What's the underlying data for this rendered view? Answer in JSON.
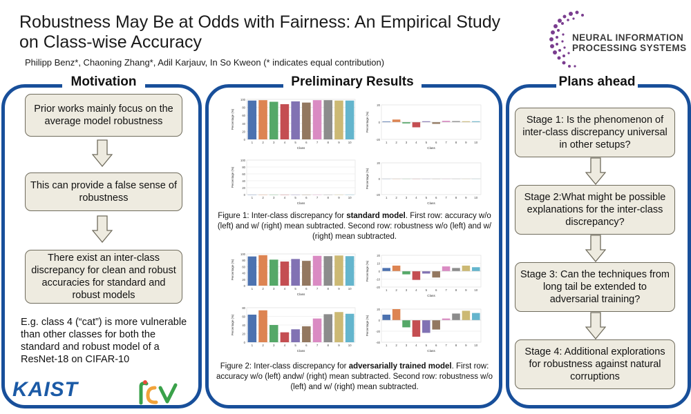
{
  "header": {
    "title": "Robustness May Be at Odds with Fairness: An Empirical Study on Class-wise Accuracy",
    "authors": "Philipp Benz*, Chaoning Zhang*, Adil Karjauv, In So Kweon (* indicates equal contribution)",
    "conference_logo_text_line1": "NEURAL INFORMATION",
    "conference_logo_text_line2": "PROCESSING SYSTEMS"
  },
  "motivation": {
    "heading": "Motivation",
    "boxes": [
      "Prior works mainly focus on the average model robustness",
      "This can provide a false sense of robustness",
      "There exist an inter-class discrepancy for clean and robust accuracies for standard and robust models"
    ],
    "note": "E.g. class 4 (“cat”) is more vulnerable than other classes for both the standard and robust model of a ResNet-18 on CIFAR-10"
  },
  "results": {
    "heading": "Preliminary Results",
    "fig1_caption_pre": "Figure 1: Inter-class discrepancy for ",
    "fig1_caption_bold": "standard model",
    "fig1_caption_post": ". First row: accuracy w/o (left) and w/ (right) mean subtracted. Second row: robustness w/o (left) and w/ (right) mean subtracted.",
    "fig2_caption_pre": "Figure 2: Inter-class discrepancy for ",
    "fig2_caption_bold": "adversarially trained model",
    "fig2_caption_post": ". First row: accuracy w/o (left) andw/ (right) mean subtracted. Second row: robustness w/o (left) and w/ (right) mean subtracted."
  },
  "plans": {
    "heading": "Plans ahead",
    "stages": [
      "Stage 1: Is the phenomenon of inter-class discrepancy universal in other setups?",
      "Stage 2:What might be possible explanations for the inter-class discrepancy?",
      "Stage 3: Can the techniques from long tail be extended to adversarial training?",
      "Stage 4: Additional explorations for robustness against natural corruptions"
    ]
  },
  "footer": {
    "kaist": "KAIST"
  },
  "colors": {
    "frame": "#184f9a",
    "box_fill": "#eeebe0",
    "bars": [
      "#4c72b0",
      "#dd8452",
      "#55a868",
      "#c44e52",
      "#8172b3",
      "#937860",
      "#da8bc3",
      "#8c8c8c",
      "#ccb974",
      "#64b5cd"
    ]
  },
  "chart_data": [
    {
      "type": "bar",
      "id": "fig1-accuracy",
      "categories": [
        "1",
        "2",
        "3",
        "4",
        "5",
        "6",
        "7",
        "8",
        "9",
        "10"
      ],
      "values": [
        97,
        98,
        94,
        88,
        95,
        92,
        98,
        98,
        97,
        97
      ],
      "xlabel": "Class",
      "ylabel": "Percentage (%)",
      "ylim": [
        0,
        100
      ],
      "yticks": [
        0,
        20,
        40,
        60,
        80,
        100
      ]
    },
    {
      "type": "bar",
      "id": "fig1-accuracy-mean-subtracted",
      "categories": [
        "1",
        "2",
        "3",
        "4",
        "5",
        "6",
        "7",
        "8",
        "9",
        "10"
      ],
      "values": [
        0.8,
        3,
        -1.5,
        -6,
        1,
        -2,
        1.5,
        1.2,
        1,
        1
      ],
      "xlabel": "Class",
      "ylabel": "Percentage (%)",
      "ylim": [
        -20,
        20
      ],
      "yticks": [
        -20,
        0,
        20
      ]
    },
    {
      "type": "bar",
      "id": "fig1-robustness",
      "categories": [
        "1",
        "2",
        "3",
        "4",
        "5",
        "6",
        "7",
        "8",
        "9",
        "10"
      ],
      "values": [
        0,
        0,
        0,
        0,
        0,
        0,
        0,
        0,
        0,
        0
      ],
      "xlabel": "Class",
      "ylabel": "Percentage (%)",
      "ylim": [
        0,
        100
      ],
      "yticks": [
        0,
        20,
        40,
        60,
        80,
        100
      ]
    },
    {
      "type": "bar",
      "id": "fig1-robustness-mean-subtracted",
      "categories": [
        "1",
        "2",
        "3",
        "4",
        "5",
        "6",
        "7",
        "8",
        "9",
        "10"
      ],
      "values": [
        0,
        0,
        0,
        0,
        0,
        0,
        0,
        0,
        0,
        0
      ],
      "xlabel": "Class",
      "ylabel": "Percentage (%)",
      "ylim": [
        -20,
        20
      ],
      "yticks": [
        -20,
        0,
        20
      ]
    },
    {
      "type": "bar",
      "id": "fig2-accuracy",
      "categories": [
        "1",
        "2",
        "3",
        "4",
        "5",
        "6",
        "7",
        "8",
        "9",
        "10"
      ],
      "values": [
        92,
        96,
        82,
        76,
        84,
        78,
        94,
        93,
        95,
        93
      ],
      "xlabel": "Class",
      "ylabel": "Percentage (%)",
      "ylim": [
        0,
        100
      ],
      "yticks": [
        0,
        20,
        40,
        60,
        80,
        100
      ]
    },
    {
      "type": "bar",
      "id": "fig2-accuracy-mean-subtracted",
      "categories": [
        "1",
        "2",
        "3",
        "4",
        "5",
        "6",
        "7",
        "8",
        "9",
        "10"
      ],
      "values": [
        4,
        7,
        -4,
        -11,
        -3,
        -8,
        6,
        4,
        7,
        5
      ],
      "xlabel": "Class",
      "ylabel": "Percentage (%)",
      "ylim": [
        -20,
        20
      ],
      "yticks": [
        -20,
        -10,
        0,
        10,
        20
      ]
    },
    {
      "type": "bar",
      "id": "fig2-robustness",
      "categories": [
        "1",
        "2",
        "3",
        "4",
        "5",
        "6",
        "7",
        "8",
        "9",
        "10"
      ],
      "values": [
        64,
        74,
        40,
        23,
        30,
        37,
        55,
        65,
        70,
        66
      ],
      "xlabel": "Class",
      "ylabel": "Percentage (%)",
      "ylim": [
        0,
        80
      ],
      "yticks": [
        0,
        20,
        40,
        60,
        80
      ]
    },
    {
      "type": "bar",
      "id": "fig2-robustness-mean-subtracted",
      "categories": [
        "1",
        "2",
        "3",
        "4",
        "5",
        "6",
        "7",
        "8",
        "9",
        "10"
      ],
      "values": [
        10,
        20,
        -13,
        -30,
        -23,
        -17,
        3,
        12,
        17,
        13
      ],
      "xlabel": "Class",
      "ylabel": "Percentage (%)",
      "ylim": [
        -40,
        20
      ],
      "yticks": [
        -40,
        -20,
        0,
        20
      ]
    }
  ]
}
